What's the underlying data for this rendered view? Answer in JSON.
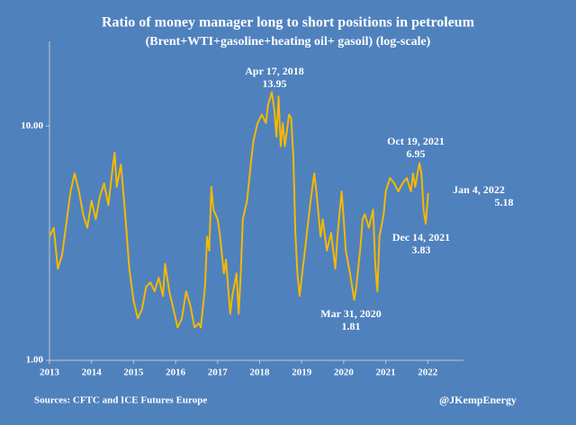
{
  "chart_data": {
    "type": "line",
    "title": "Ratio of money manager long to short positions in petroleum",
    "subtitle": "(Brent+WTI+gasoline+heating oil+ gasoil) (log-scale)",
    "source": "Sources: CFTC and ICE Futures Europe",
    "credit": "@JKempEnergy",
    "log_scale": true,
    "xlim": [
      2013,
      2022.85
    ],
    "xticks": [
      2013,
      2014,
      2015,
      2016,
      2017,
      2018,
      2019,
      2020,
      2021,
      2022
    ],
    "ylim": [
      1,
      23
    ],
    "yticks": [
      {
        "value": 1,
        "label": "1.00"
      },
      {
        "value": 10,
        "label": "10.00"
      }
    ],
    "series": [
      {
        "color": "#f5b800",
        "x": [
          2013.0,
          2013.1,
          2013.2,
          2013.3,
          2013.4,
          2013.5,
          2013.6,
          2013.7,
          2013.8,
          2013.9,
          2014.0,
          2014.1,
          2014.2,
          2014.3,
          2014.4,
          2014.5,
          2014.55,
          2014.6,
          2014.7,
          2014.8,
          2014.9,
          2015.0,
          2015.1,
          2015.2,
          2015.3,
          2015.4,
          2015.5,
          2015.6,
          2015.7,
          2015.75,
          2015.85,
          2015.95,
          2016.05,
          2016.15,
          2016.25,
          2016.35,
          2016.45,
          2016.55,
          2016.6,
          2016.7,
          2016.75,
          2016.8,
          2016.85,
          2016.9,
          2017.0,
          2017.05,
          2017.15,
          2017.2,
          2017.3,
          2017.35,
          2017.45,
          2017.5,
          2017.55,
          2017.6,
          2017.7,
          2017.8,
          2017.85,
          2017.95,
          2018.05,
          2018.15,
          2018.2,
          2018.29,
          2018.35,
          2018.4,
          2018.45,
          2018.5,
          2018.55,
          2018.6,
          2018.7,
          2018.75,
          2018.8,
          2018.85,
          2018.9,
          2018.95,
          2019.0,
          2019.1,
          2019.2,
          2019.3,
          2019.35,
          2019.45,
          2019.5,
          2019.6,
          2019.7,
          2019.8,
          2019.85,
          2019.95,
          2020.0,
          2020.05,
          2020.15,
          2020.25,
          2020.3,
          2020.4,
          2020.45,
          2020.5,
          2020.6,
          2020.7,
          2020.75,
          2020.8,
          2020.85,
          2020.95,
          2021.0,
          2021.1,
          2021.2,
          2021.3,
          2021.4,
          2021.5,
          2021.6,
          2021.65,
          2021.7,
          2021.8,
          2021.85,
          2021.9,
          2021.95,
          2022.01
        ],
        "values": [
          3.37,
          3.68,
          2.46,
          2.82,
          3.84,
          5.26,
          6.28,
          5.26,
          4.2,
          3.68,
          4.8,
          4.0,
          5.0,
          5.7,
          4.6,
          6.6,
          7.7,
          5.5,
          6.85,
          4.2,
          2.46,
          1.8,
          1.51,
          1.65,
          2.06,
          2.15,
          1.97,
          2.25,
          1.88,
          2.58,
          1.97,
          1.65,
          1.38,
          1.51,
          1.97,
          1.72,
          1.38,
          1.44,
          1.38,
          2.06,
          3.37,
          2.94,
          5.5,
          4.4,
          4.0,
          3.5,
          2.35,
          2.69,
          1.58,
          1.88,
          2.35,
          1.58,
          2.35,
          4.0,
          4.8,
          7.2,
          8.6,
          10.3,
          11.2,
          10.3,
          12.3,
          13.95,
          11.7,
          9.0,
          13.4,
          8.2,
          10.3,
          8.2,
          11.2,
          10.8,
          7.5,
          3.5,
          2.35,
          1.88,
          2.25,
          3.2,
          4.6,
          6.28,
          5.26,
          3.37,
          4.0,
          2.94,
          3.5,
          2.46,
          3.37,
          5.26,
          4.0,
          2.94,
          2.35,
          1.81,
          2.06,
          3.08,
          4.0,
          4.2,
          3.68,
          4.4,
          2.58,
          1.97,
          3.37,
          4.2,
          5.26,
          6.0,
          5.7,
          5.26,
          5.7,
          6.0,
          5.26,
          6.28,
          5.5,
          6.95,
          6.28,
          4.4,
          3.83,
          5.18
        ]
      }
    ],
    "annotations": [
      {
        "date": "Apr 17, 2018",
        "value": 13.95
      },
      {
        "date": "Mar 31, 2020",
        "value": 1.81
      },
      {
        "date": "Oct 19, 2021",
        "value": 6.95
      },
      {
        "date": "Dec 14, 2021",
        "value": 3.83
      },
      {
        "date": "Jan 4, 2022",
        "value": 5.18
      }
    ]
  }
}
